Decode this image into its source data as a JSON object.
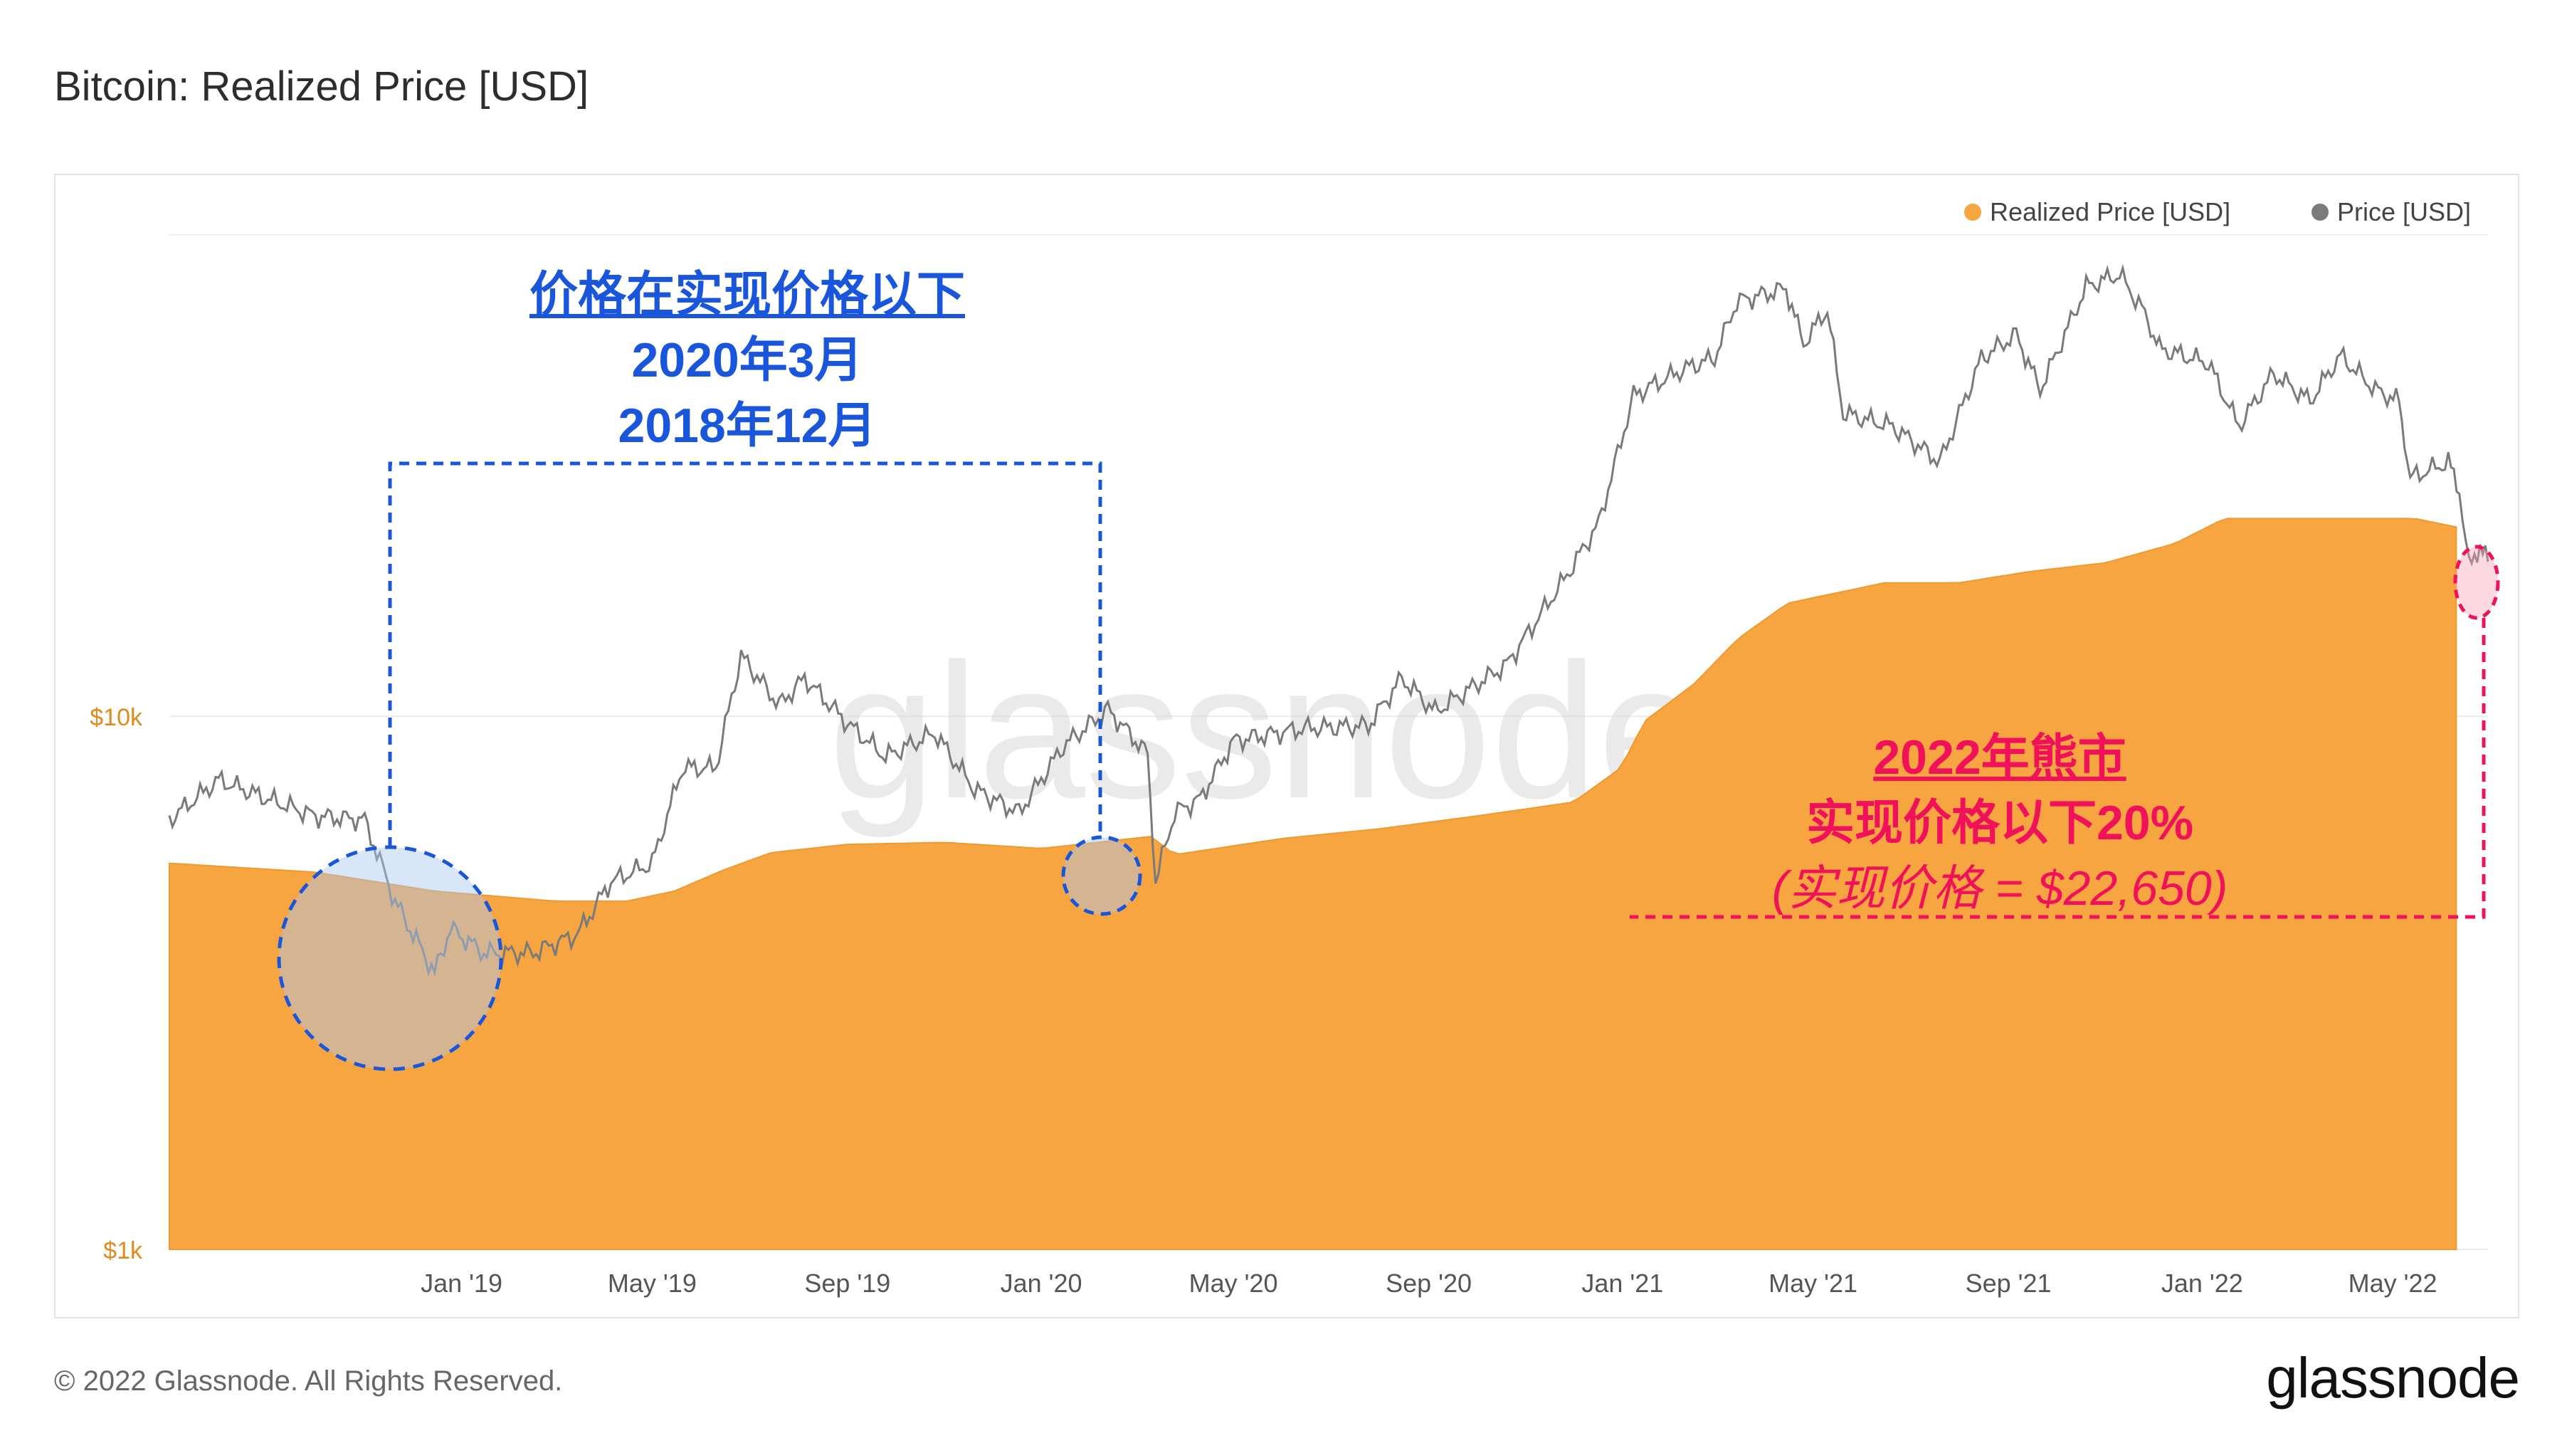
{
  "header": {
    "title": "Bitcoin: Realized Price [USD]"
  },
  "legend": [
    {
      "label": "Realized Price [USD]",
      "color": "#f7a541"
    },
    {
      "label": "Price [USD]",
      "color": "#7a7a7a"
    }
  ],
  "annotations": {
    "blue": {
      "line1": "价格在实现价格以下",
      "line2": "2020年3月",
      "line3": "2018年12月",
      "color": "#1a56db"
    },
    "pink": {
      "line1": "2022年熊市",
      "line2": "实现价格以下20%",
      "line3": "(实现价格 = $22,650)",
      "color": "#f0115a"
    }
  },
  "watermark": "glassnode",
  "footer": {
    "copyright": "© 2022 Glassnode. All Rights Reserved.",
    "logo": "glassnode"
  },
  "chart_data": {
    "type": "area",
    "title": "Bitcoin: Realized Price [USD]",
    "y_scale": "log",
    "ylim": [
      1000,
      80000
    ],
    "y_ticks": [
      {
        "value": 1000,
        "label": "$1k"
      },
      {
        "value": 10000,
        "label": "$10k"
      }
    ],
    "x_range": [
      "2018-07-01",
      "2022-06-30"
    ],
    "x_ticks": [
      {
        "date": "2019-01-01",
        "label": "Jan '19"
      },
      {
        "date": "2019-05-01",
        "label": "May '19"
      },
      {
        "date": "2019-09-01",
        "label": "Sep '19"
      },
      {
        "date": "2020-01-01",
        "label": "Jan '20"
      },
      {
        "date": "2020-05-01",
        "label": "May '20"
      },
      {
        "date": "2020-09-01",
        "label": "Sep '20"
      },
      {
        "date": "2021-01-01",
        "label": "Jan '21"
      },
      {
        "date": "2021-05-01",
        "label": "May '21"
      },
      {
        "date": "2021-09-01",
        "label": "Sep '21"
      },
      {
        "date": "2022-01-01",
        "label": "Jan '22"
      },
      {
        "date": "2022-05-01",
        "label": "May '22"
      }
    ],
    "grid": true,
    "legend_position": "top-right",
    "series": [
      {
        "name": "Realized Price [USD]",
        "color": "#f7a541",
        "style": "filled-area",
        "points": [
          [
            "2018-07-01",
            5300
          ],
          [
            "2018-10-01",
            5100
          ],
          [
            "2018-12-15",
            4700
          ],
          [
            "2019-03-01",
            4500
          ],
          [
            "2019-04-15",
            4500
          ],
          [
            "2019-05-15",
            4700
          ],
          [
            "2019-06-15",
            5150
          ],
          [
            "2019-07-15",
            5550
          ],
          [
            "2019-09-01",
            5750
          ],
          [
            "2019-11-01",
            5800
          ],
          [
            "2020-01-01",
            5650
          ],
          [
            "2020-03-10",
            5950
          ],
          [
            "2020-03-25",
            5500
          ],
          [
            "2020-06-01",
            5900
          ],
          [
            "2020-08-01",
            6150
          ],
          [
            "2020-10-01",
            6500
          ],
          [
            "2020-12-01",
            6900
          ],
          [
            "2020-12-31",
            8000
          ],
          [
            "2021-01-15",
            9800
          ],
          [
            "2021-02-15",
            11500
          ],
          [
            "2021-03-15",
            14000
          ],
          [
            "2021-04-15",
            16300
          ],
          [
            "2021-06-15",
            17800
          ],
          [
            "2021-08-01",
            17800
          ],
          [
            "2021-09-15",
            18700
          ],
          [
            "2021-11-01",
            19400
          ],
          [
            "2021-12-15",
            21100
          ],
          [
            "2022-01-15",
            23500
          ],
          [
            "2022-03-15",
            23500
          ],
          [
            "2022-05-15",
            23500
          ],
          [
            "2022-06-10",
            22650
          ]
        ]
      },
      {
        "name": "Price [USD]",
        "color": "#7a7a7a",
        "style": "line",
        "points": [
          [
            "2018-07-01",
            6400
          ],
          [
            "2018-08-01",
            7600
          ],
          [
            "2018-09-01",
            7000
          ],
          [
            "2018-10-01",
            6500
          ],
          [
            "2018-11-01",
            6400
          ],
          [
            "2018-11-20",
            4500
          ],
          [
            "2018-12-15",
            3300
          ],
          [
            "2018-12-25",
            4000
          ],
          [
            "2019-01-15",
            3600
          ],
          [
            "2019-02-15",
            3600
          ],
          [
            "2019-03-15",
            3900
          ],
          [
            "2019-04-05",
            4900
          ],
          [
            "2019-05-01",
            5300
          ],
          [
            "2019-05-20",
            8000
          ],
          [
            "2019-06-10",
            8000
          ],
          [
            "2019-06-26",
            13000
          ],
          [
            "2019-07-20",
            10500
          ],
          [
            "2019-08-05",
            11800
          ],
          [
            "2019-09-01",
            9700
          ],
          [
            "2019-09-25",
            8400
          ],
          [
            "2019-10-26",
            9300
          ],
          [
            "2019-11-20",
            7300
          ],
          [
            "2019-12-18",
            6600
          ],
          [
            "2020-01-15",
            8800
          ],
          [
            "2020-02-12",
            10300
          ],
          [
            "2020-03-08",
            8500
          ],
          [
            "2020-03-13",
            4900
          ],
          [
            "2020-03-25",
            6600
          ],
          [
            "2020-04-10",
            7000
          ],
          [
            "2020-05-01",
            9000
          ],
          [
            "2020-06-15",
            9500
          ],
          [
            "2020-07-25",
            9600
          ],
          [
            "2020-08-15",
            11800
          ],
          [
            "2020-09-05",
            10200
          ],
          [
            "2020-10-20",
            12500
          ],
          [
            "2020-11-25",
            18000
          ],
          [
            "2020-12-17",
            23000
          ],
          [
            "2021-01-08",
            40000
          ],
          [
            "2021-02-10",
            45000
          ],
          [
            "2021-02-28",
            47000
          ],
          [
            "2021-03-14",
            60000
          ],
          [
            "2021-04-14",
            63500
          ],
          [
            "2021-04-25",
            50000
          ],
          [
            "2021-05-10",
            58000
          ],
          [
            "2021-05-20",
            37000
          ],
          [
            "2021-06-20",
            35000
          ],
          [
            "2021-07-20",
            30000
          ],
          [
            "2021-08-15",
            47000
          ],
          [
            "2021-09-06",
            52000
          ],
          [
            "2021-09-21",
            41000
          ],
          [
            "2021-10-20",
            64000
          ],
          [
            "2021-11-10",
            67500
          ],
          [
            "2021-11-26",
            57000
          ],
          [
            "2021-12-05",
            49000
          ],
          [
            "2022-01-05",
            46000
          ],
          [
            "2022-01-24",
            35000
          ],
          [
            "2022-02-15",
            44000
          ],
          [
            "2022-03-10",
            39000
          ],
          [
            "2022-03-29",
            47500
          ],
          [
            "2022-04-20",
            41000
          ],
          [
            "2022-05-05",
            39000
          ],
          [
            "2022-05-12",
            28000
          ],
          [
            "2022-06-05",
            30000
          ],
          [
            "2022-06-12",
            26500
          ],
          [
            "2022-06-18",
            19000
          ],
          [
            "2022-06-25",
            21000
          ],
          [
            "2022-06-30",
            19500
          ]
        ]
      }
    ]
  }
}
